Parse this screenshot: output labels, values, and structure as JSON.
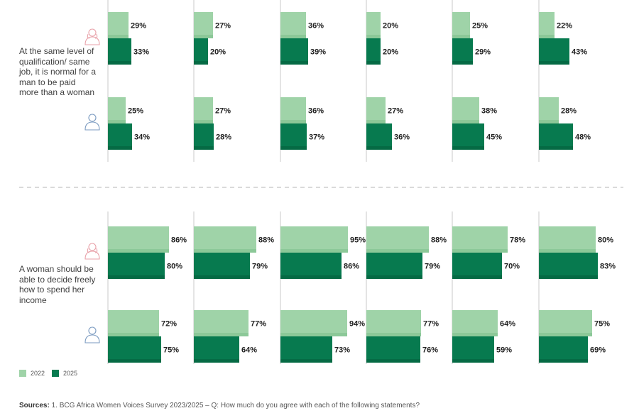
{
  "statements": [
    "At the same level of qualification/ same job, it is normal for a man to be paid more than a woman",
    "A woman should be able to decide freely how to spend her income"
  ],
  "legend": {
    "y2022": "2022",
    "y2025": "2025"
  },
  "sources": {
    "label": "Sources:",
    "text": " 1. BCG Africa Women Voices Survey 2023/2025 – Q: How much do you agree with each of the following statements?"
  },
  "colors": {
    "y2022": "#9fd3a8",
    "y2025": "#077a4f",
    "axis": "#c8c8c8",
    "female_icon": "#e8a0a8",
    "male_icon": "#7a9ac0"
  },
  "icons": {
    "female": "female-icon",
    "male": "male-icon"
  },
  "chart_data": {
    "type": "bar",
    "orientation": "horizontal",
    "xlim": [
      0,
      100
    ],
    "groups": [
      "2022",
      "2025"
    ],
    "panels": [
      {
        "statement_index": 0,
        "rows": [
          {
            "gender": "female",
            "y2022": [
              29,
              27,
              36,
              20,
              25,
              22
            ],
            "y2025": [
              33,
              20,
              39,
              20,
              29,
              43
            ]
          },
          {
            "gender": "male",
            "y2022": [
              25,
              27,
              36,
              27,
              38,
              28
            ],
            "y2025": [
              34,
              28,
              37,
              36,
              45,
              48
            ]
          }
        ]
      },
      {
        "statement_index": 1,
        "rows": [
          {
            "gender": "female",
            "y2022": [
              86,
              88,
              95,
              88,
              78,
              80
            ],
            "y2025": [
              80,
              79,
              86,
              79,
              70,
              83
            ]
          },
          {
            "gender": "male",
            "y2022": [
              72,
              77,
              94,
              77,
              64,
              75
            ],
            "y2025": [
              75,
              64,
              73,
              76,
              59,
              69
            ]
          }
        ]
      }
    ]
  }
}
